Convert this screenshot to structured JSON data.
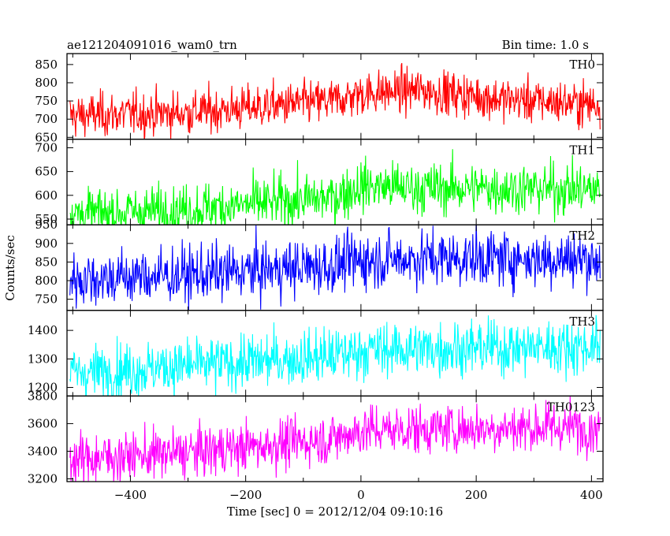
{
  "header": {
    "title": "ae121204091016_wam0_trn",
    "bin_time": "Bin time: 1.0 s"
  },
  "chart_data": {
    "type": "line",
    "ylabel": "Counts/sec",
    "xlabel": "Time [sec] 0 = 2012/12/04 09:10:16",
    "xlim": [
      -510,
      420
    ],
    "x_ticks": [
      -400,
      -200,
      0,
      200,
      400
    ],
    "grid": false,
    "panels": [
      {
        "name": "TH0",
        "color": "#ff0000",
        "ylim": [
          645,
          880
        ],
        "ticks": [
          650,
          700,
          750,
          800,
          850
        ],
        "trend": [
          [
            -505,
            710
          ],
          [
            -300,
            718
          ],
          [
            -50,
            750
          ],
          [
            0,
            770
          ],
          [
            100,
            780
          ],
          [
            250,
            755
          ],
          [
            415,
            740
          ]
        ],
        "noise": 30
      },
      {
        "name": "TH1",
        "color": "#00ff00",
        "ylim": [
          538,
          718
        ],
        "ticks": [
          550,
          600,
          650,
          700
        ],
        "tick_labels": [
          "550",
          "600",
          "650",
          "700"
        ],
        "trend": [
          [
            -505,
            560
          ],
          [
            -300,
            570
          ],
          [
            -50,
            595
          ],
          [
            0,
            620
          ],
          [
            100,
            615
          ],
          [
            250,
            615
          ],
          [
            415,
            612
          ]
        ],
        "noise": 27
      },
      {
        "name": "TH2",
        "color": "#0000ff",
        "ylim": [
          720,
          950
        ],
        "ticks": [
          750,
          800,
          850,
          900,
          950
        ],
        "trend": [
          [
            -505,
            805
          ],
          [
            -300,
            815
          ],
          [
            -50,
            840
          ],
          [
            0,
            855
          ],
          [
            100,
            860
          ],
          [
            250,
            860
          ],
          [
            415,
            858
          ]
        ],
        "noise": 38
      },
      {
        "name": "TH3",
        "color": "#00ffff",
        "ylim": [
          1170,
          1470
        ],
        "ticks": [
          1200,
          1300,
          1400
        ],
        "trend": [
          [
            -505,
            1250
          ],
          [
            -300,
            1275
          ],
          [
            -50,
            1310
          ],
          [
            0,
            1330
          ],
          [
            100,
            1335
          ],
          [
            250,
            1340
          ],
          [
            415,
            1345
          ]
        ],
        "noise": 48
      },
      {
        "name": "TH0123",
        "color": "#ff00ff",
        "ylim": [
          3180,
          3800
        ],
        "ticks": [
          3200,
          3400,
          3600,
          3800
        ],
        "trend": [
          [
            -505,
            3340
          ],
          [
            -300,
            3390
          ],
          [
            -50,
            3490
          ],
          [
            0,
            3550
          ],
          [
            100,
            3560
          ],
          [
            250,
            3570
          ],
          [
            415,
            3575
          ]
        ],
        "noise": 90
      }
    ]
  }
}
